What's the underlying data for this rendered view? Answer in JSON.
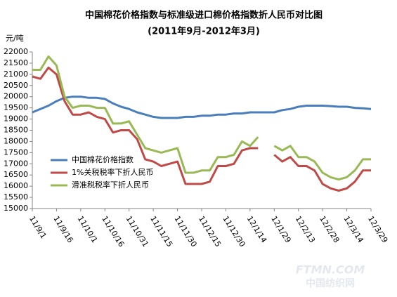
{
  "chart_data": {
    "type": "line",
    "title": "中国棉花价格指数与标准级进口棉价格指数折人民币对比图",
    "subtitle": "(2011年9月-2012年3月)",
    "y_label": "元/吨",
    "watermark": [
      "FTMN.COM",
      "中国纺织网"
    ],
    "categories": [
      "11/9/1",
      null,
      null,
      "11/9/16",
      null,
      null,
      "11/10/1",
      null,
      null,
      "11/10/16",
      null,
      null,
      "11/10/31",
      null,
      null,
      "11/11/15",
      null,
      null,
      "11/11/30",
      null,
      null,
      "11/12/15",
      null,
      null,
      "11/12/30",
      null,
      null,
      "12/1/14",
      null,
      null,
      "12/1/29",
      null,
      null,
      "12/2/13",
      null,
      null,
      "12/2/28",
      null,
      null,
      "12/3/14",
      null,
      null,
      "12/3/29"
    ],
    "series": [
      {
        "name": "中国棉花价格指数",
        "color": "#4a7ebb",
        "values": [
          19300,
          19450,
          19600,
          19800,
          19950,
          20000,
          20000,
          19950,
          19950,
          19900,
          19700,
          19550,
          19450,
          19300,
          19200,
          19100,
          19050,
          19050,
          19050,
          19100,
          19100,
          19150,
          19150,
          19200,
          19200,
          19250,
          19250,
          19300,
          19300,
          19300,
          19300,
          19400,
          19450,
          19550,
          19600,
          19600,
          19600,
          19580,
          19550,
          19550,
          19500,
          19480,
          19450
        ]
      },
      {
        "name": "1%关税税率下折人民币",
        "color": "#be4b48",
        "values": [
          20900,
          20800,
          21300,
          21000,
          19800,
          19200,
          19200,
          19300,
          19100,
          19000,
          18400,
          18500,
          18500,
          18100,
          17200,
          17100,
          16900,
          17000,
          17100,
          16100,
          16100,
          16100,
          16200,
          16900,
          16900,
          17000,
          17600,
          17700,
          17700,
          null,
          17400,
          17100,
          17300,
          16900,
          16900,
          16700,
          16100,
          15900,
          15800,
          15900,
          16200,
          16700,
          16700
        ]
      },
      {
        "name": "滑准税税率下折人民币",
        "color": "#98b954",
        "values": [
          21200,
          21200,
          21800,
          21400,
          20000,
          19500,
          19600,
          19600,
          19500,
          19500,
          18800,
          18800,
          18900,
          18300,
          17700,
          17600,
          17500,
          17600,
          17700,
          16600,
          16600,
          16700,
          16700,
          17300,
          17300,
          17400,
          18000,
          17800,
          18200,
          null,
          17800,
          17600,
          17800,
          17300,
          17300,
          17100,
          16600,
          16400,
          16300,
          16400,
          16700,
          17200,
          17200
        ]
      }
    ],
    "ylim": [
      15000,
      22000
    ],
    "yticks": [
      15000,
      15500,
      16000,
      16500,
      17000,
      17500,
      18000,
      18500,
      19000,
      19500,
      20000,
      20500,
      21000,
      21500,
      22000
    ],
    "grid": false
  }
}
